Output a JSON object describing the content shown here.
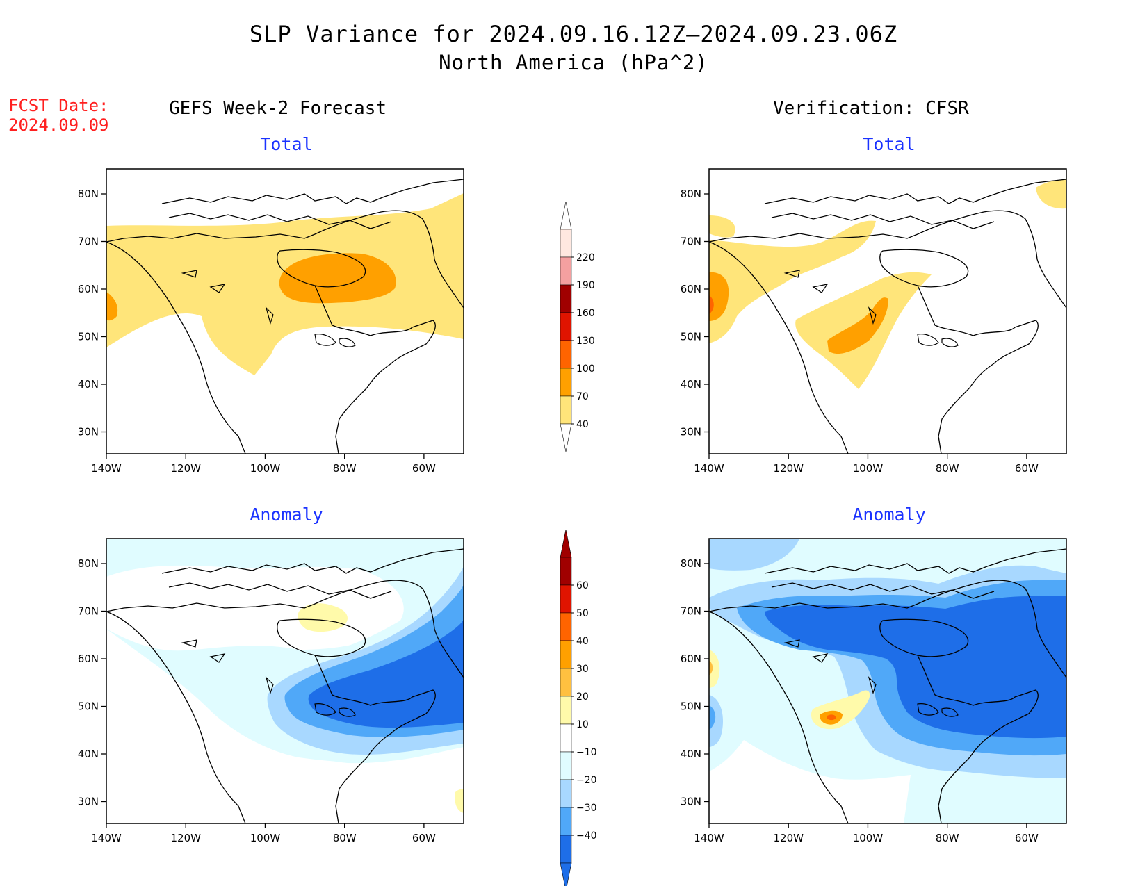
{
  "header": {
    "title": "SLP Variance for 2024.09.16.12Z–2024.09.23.06Z",
    "subtitle": "North America (hPa^2)",
    "fcst_label": "FCST Date:",
    "fcst_date": "2024.09.09",
    "left_column": "GEFS Week-2 Forecast",
    "right_column": "Verification: CFSR"
  },
  "panels": {
    "total_label": "Total",
    "anomaly_label": "Anomaly"
  },
  "axes": {
    "lon_labels": [
      "140W",
      "120W",
      "100W",
      "80W",
      "60W"
    ],
    "lat_labels": [
      "80N",
      "70N",
      "60N",
      "50N",
      "40N",
      "30N"
    ]
  },
  "colorbars": {
    "total": {
      "labels": [
        "220",
        "190",
        "160",
        "130",
        "100",
        "70",
        "40"
      ],
      "colors": [
        "#ffe8e0",
        "#f4a0a0",
        "#a00000",
        "#e01400",
        "#ff6400",
        "#ffa000",
        "#ffe57a"
      ]
    },
    "anomaly": {
      "labels": [
        "60",
        "50",
        "40",
        "30",
        "20",
        "10",
        "−10",
        "−20",
        "−30",
        "−40"
      ],
      "colors": [
        "#a00000",
        "#e01400",
        "#ff6400",
        "#ffa000",
        "#ffc040",
        "#fffaaa",
        "#ffffff",
        "#e0fcff",
        "#a8d8ff",
        "#50a8f8",
        "#1e6ee8"
      ]
    }
  },
  "chart_data": [
    {
      "type": "heatmap",
      "name": "GEFS Week-2 Forecast Total",
      "units": "hPa^2",
      "levels": [
        40,
        70,
        100,
        130,
        160,
        190,
        220
      ],
      "note_regions": "max ~70-100 over Hudson Bay"
    },
    {
      "type": "heatmap",
      "name": "Verification CFSR Total",
      "units": "hPa^2",
      "levels": [
        40,
        70,
        100,
        130,
        160,
        190,
        220
      ],
      "note_regions": "70-100 near 140W/57N and Saskatchewan"
    },
    {
      "type": "heatmap",
      "name": "GEFS Week-2 Forecast Anomaly",
      "units": "hPa^2",
      "levels": [
        -40,
        -30,
        -20,
        -10,
        10,
        20,
        30,
        40,
        50,
        60
      ],
      "note_regions": "-30 to -40 over Great Lakes/Northeast"
    },
    {
      "type": "heatmap",
      "name": "Verification CFSR Anomaly",
      "units": "hPa^2",
      "levels": [
        -40,
        -30,
        -20,
        -10,
        10,
        20,
        30,
        40,
        50,
        60
      ],
      "note_regions": "-40 over eastern Canada; +30 near 107W/48N"
    }
  ]
}
